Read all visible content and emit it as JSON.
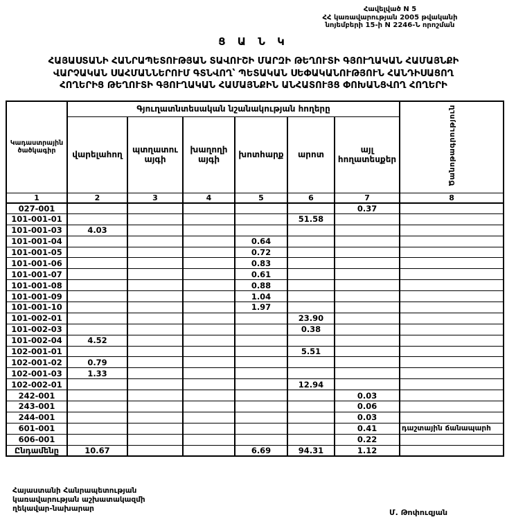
{
  "annex": {
    "line1": "Հավելված N 5",
    "line2": "ՀՀ կառավարության 2005 թվականի",
    "line3": "նոյեմբերի 15-ի N 2246-Ն որոշման"
  },
  "doc_title": "Ց Ա Ն Կ",
  "headline": [
    "ՀԱՅԱՍՏԱՆԻ ՀԱՆՐԱՊԵՏՈՒԹՅԱՆ ՏԱՎՈՒՇԻ ՄԱՐԶԻ ԹԵՂՈՒՏԻ ԳՅՈՒՂԱԿԱՆ ՀԱՄԱՅՆՔԻ",
    "ՎԱՐՉԱԿԱՆ ՍԱՀՄԱՆՆԵՐՈՒՄ ԳՏՆՎՈՂ՝ ՊԵՏԱԿԱՆ ՍԵՓԱԿԱՆՈՒԹՅՈՒՆ ՀԱՆԴԻՍԱՑՈՂ",
    "ՀՈՂԵՐԻՑ ԹԵՂՈՒՏԻ ԳՅՈՒՂԱԿԱՆ ՀԱՄԱՅՆՔԻՆ ԱՆՀԱՏՈՒՅՑ ՓՈԽԱՆՑՎՈՂ ՀՈՂԵՐԻ"
  ],
  "table": {
    "col1_header": "Կադաստրային ծածկագիր",
    "group_header": "Գյուղատնտեսական նշանակության հողերը",
    "col8_header": "Ծանոթագրություն",
    "sub_headers": [
      "վարելահող",
      "պտղատու այգի",
      "խաղողի այգի",
      "խոտհարք",
      "արոտ",
      "այլ հողատեսքեր"
    ],
    "number_row": [
      "1",
      "2",
      "3",
      "4",
      "5",
      "6",
      "7",
      "8"
    ],
    "rows": [
      [
        "027-001",
        "",
        "",
        "",
        "",
        "",
        "0.37",
        ""
      ],
      [
        "101-001-01",
        "",
        "",
        "",
        "",
        "51.58",
        "",
        ""
      ],
      [
        "101-001-03",
        "4.03",
        "",
        "",
        "",
        "",
        "",
        ""
      ],
      [
        "101-001-04",
        "",
        "",
        "",
        "0.64",
        "",
        "",
        ""
      ],
      [
        "101-001-05",
        "",
        "",
        "",
        "0.72",
        "",
        "",
        ""
      ],
      [
        "101-001-06",
        "",
        "",
        "",
        "0.83",
        "",
        "",
        ""
      ],
      [
        "101-001-07",
        "",
        "",
        "",
        "0.61",
        "",
        "",
        ""
      ],
      [
        "101-001-08",
        "",
        "",
        "",
        "0.88",
        "",
        "",
        ""
      ],
      [
        "101-001-09",
        "",
        "",
        "",
        "1.04",
        "",
        "",
        ""
      ],
      [
        "101-001-10",
        "",
        "",
        "",
        "1.97",
        "",
        "",
        ""
      ],
      [
        "101-002-01",
        "",
        "",
        "",
        "",
        "23.90",
        "",
        ""
      ],
      [
        "101-002-03",
        "",
        "",
        "",
        "",
        "0.38",
        "",
        ""
      ],
      [
        "101-002-04",
        "4.52",
        "",
        "",
        "",
        "",
        "",
        ""
      ],
      [
        "102-001-01",
        "",
        "",
        "",
        "",
        "5.51",
        "",
        ""
      ],
      [
        "102-001-02",
        "0.79",
        "",
        "",
        "",
        "",
        "",
        ""
      ],
      [
        "102-001-03",
        "1.33",
        "",
        "",
        "",
        "",
        "",
        ""
      ],
      [
        "102-002-01",
        "",
        "",
        "",
        "",
        "12.94",
        "",
        ""
      ],
      [
        "242-001",
        "",
        "",
        "",
        "",
        "",
        "0.03",
        ""
      ],
      [
        "243-001",
        "",
        "",
        "",
        "",
        "",
        "0.06",
        ""
      ],
      [
        "244-001",
        "",
        "",
        "",
        "",
        "",
        "0.03",
        ""
      ],
      [
        "601-001",
        "",
        "",
        "",
        "",
        "",
        "0.41",
        "դաշտային ճանապարհ"
      ],
      [
        "606-001",
        "",
        "",
        "",
        "",
        "",
        "0.22",
        ""
      ]
    ],
    "total_row": [
      "Ընդամենը",
      "10.67",
      "",
      "",
      "6.69",
      "94.31",
      "1.12",
      ""
    ]
  },
  "footer": {
    "left_lines": [
      "Հայաստանի Հանրապետության",
      "կառավարության աշխատակազմի",
      "ղեկավար-նախարար"
    ],
    "signature": "Մ. Թոփուզյան"
  }
}
